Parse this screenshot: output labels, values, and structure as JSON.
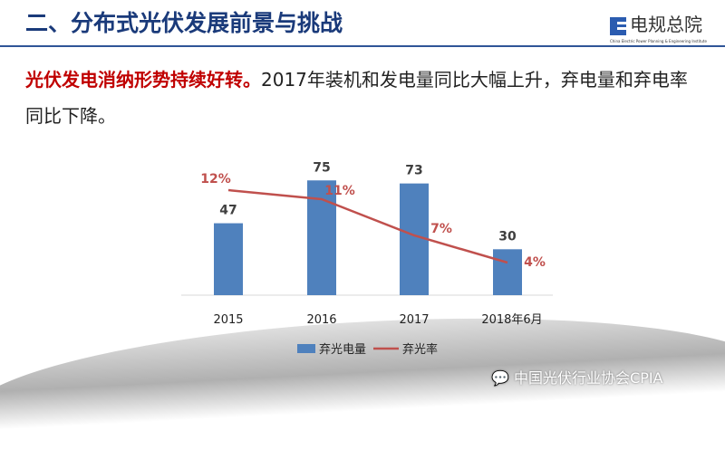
{
  "header": {
    "title": "二、分布式光伏发展前景与挑战",
    "logo_cn": "电规总院",
    "logo_en": "China Electric Power Planning & Engineering Institute"
  },
  "lead": {
    "highlight": "光伏发电消纳形势持续好转。",
    "text": "2017年装机和发电量同比大幅上升，弃电量和弃电率同比下降。"
  },
  "chart_data": {
    "type": "bar+line",
    "categories": [
      "2015",
      "2016",
      "2017",
      "2018年6月"
    ],
    "series": [
      {
        "name": "弃光电量",
        "type": "bar",
        "values": [
          47,
          75,
          73,
          30
        ],
        "labels": [
          "47",
          "75",
          "73",
          "30"
        ],
        "color": "#4f81bd"
      },
      {
        "name": "弃光率",
        "type": "line",
        "values": [
          12,
          11,
          7,
          4
        ],
        "labels": [
          "12%",
          "11%",
          "7%",
          "4%"
        ],
        "color": "#c0504d"
      }
    ],
    "legend": "bottom"
  },
  "watermark": "中国光伏行业协会CPIA"
}
